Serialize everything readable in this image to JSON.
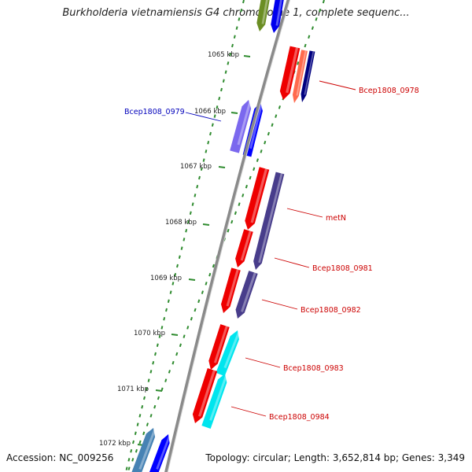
{
  "title": "Burkholderia vietnamiensis G4 chromosome 1, complete sequenc...",
  "accession": "Accession: NC_009256",
  "topology": "Topology: circular; Length: 3,652,814 bp; Genes: 3,349",
  "colors": {
    "backbone": "#8a8a8a",
    "tick": "#2e8b2e",
    "label_forward": "#cc0000",
    "label_reverse": "#0000bb"
  },
  "kbp_labels": [
    "1065 kbp",
    "1066 kbp",
    "1067 kbp",
    "1068 kbp",
    "1069 kbp",
    "1070 kbp",
    "1071 kbp",
    "1072 kbp"
  ],
  "gene_labels": [
    {
      "text": "Bcep1808_0978",
      "color": "#cc0000"
    },
    {
      "text": "Bcep1808_0979",
      "color": "#0000bb"
    },
    {
      "text": "metN",
      "color": "#cc0000"
    },
    {
      "text": "Bcep1808_0981",
      "color": "#cc0000"
    },
    {
      "text": "Bcep1808_0982",
      "color": "#cc0000"
    },
    {
      "text": "Bcep1808_0983",
      "color": "#cc0000"
    },
    {
      "text": "Bcep1808_0984",
      "color": "#cc0000"
    }
  ]
}
